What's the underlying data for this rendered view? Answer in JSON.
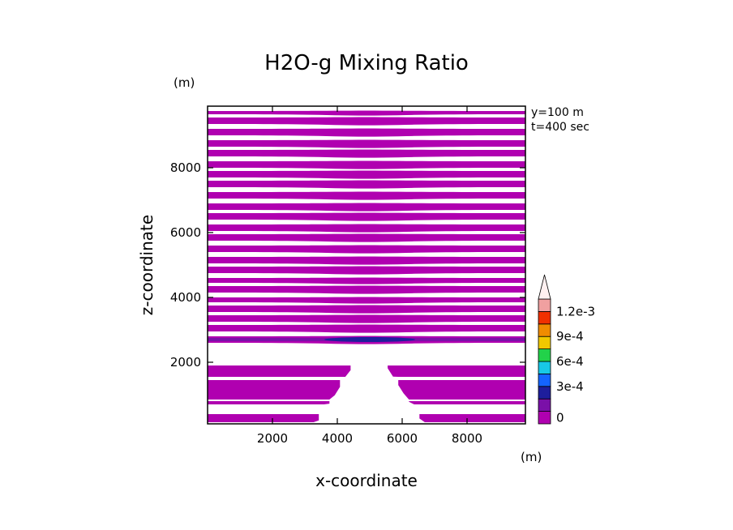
{
  "chart_data": {
    "type": "heatmap",
    "title": "H2O-g Mixing Ratio",
    "xlabel": "x-coordinate",
    "ylabel": "z-coordinate",
    "x_unit": "(m)",
    "y_unit": "(m)",
    "annotations": [
      "y=100 m",
      "t=400 sec"
    ],
    "xlim": [
      0,
      9800
    ],
    "ylim": [
      100,
      9900
    ],
    "xticks": [
      2000,
      4000,
      6000,
      8000
    ],
    "yticks": [
      2000,
      4000,
      6000,
      8000
    ],
    "xtick_labels": [
      "2000",
      "4000",
      "6000",
      "8000"
    ],
    "ytick_labels": [
      "2000",
      "4000",
      "6000",
      "8000"
    ],
    "colorbar": {
      "levels": [
        0,
        0.00015,
        0.0003,
        0.00045,
        0.0006,
        0.00075,
        0.0009,
        0.00105,
        0.0012,
        0.00135
      ],
      "colors": [
        "#b000b0",
        "#7a10a8",
        "#1e1e9c",
        "#1464ff",
        "#18c8e6",
        "#22d24a",
        "#f0c800",
        "#f08c00",
        "#f03000",
        "#f0a0a0",
        "#fff0f0"
      ],
      "labels": [
        "0",
        "3e-4",
        "6e-4",
        "9e-4",
        "1.2e-3"
      ],
      "label_values": [
        0,
        0.0003,
        0.0006,
        0.0009,
        0.0012
      ],
      "extend": "max"
    },
    "field_color": "#b000b0",
    "band_z": [
      [
        150,
        400
      ],
      [
        700,
        800
      ],
      [
        850,
        1450
      ],
      [
        1550,
        1900
      ],
      [
        2600,
        2800
      ],
      [
        2950,
        3150
      ],
      [
        3250,
        3450
      ],
      [
        3550,
        3750
      ],
      [
        3850,
        4000
      ],
      [
        4150,
        4350
      ],
      [
        4450,
        4600
      ],
      [
        4750,
        4950
      ],
      [
        5050,
        5250
      ],
      [
        5400,
        5600
      ],
      [
        5750,
        5950
      ],
      [
        6050,
        6250
      ],
      [
        6400,
        6600
      ],
      [
        6700,
        6900
      ],
      [
        7050,
        7250
      ],
      [
        7400,
        7600
      ],
      [
        7700,
        7900
      ],
      [
        8000,
        8200
      ],
      [
        8350,
        8550
      ],
      [
        8650,
        8850
      ],
      [
        9000,
        9200
      ],
      [
        9350,
        9550
      ],
      [
        9650,
        9750
      ]
    ],
    "blue_layer_z": [
      2650,
      2750
    ]
  }
}
